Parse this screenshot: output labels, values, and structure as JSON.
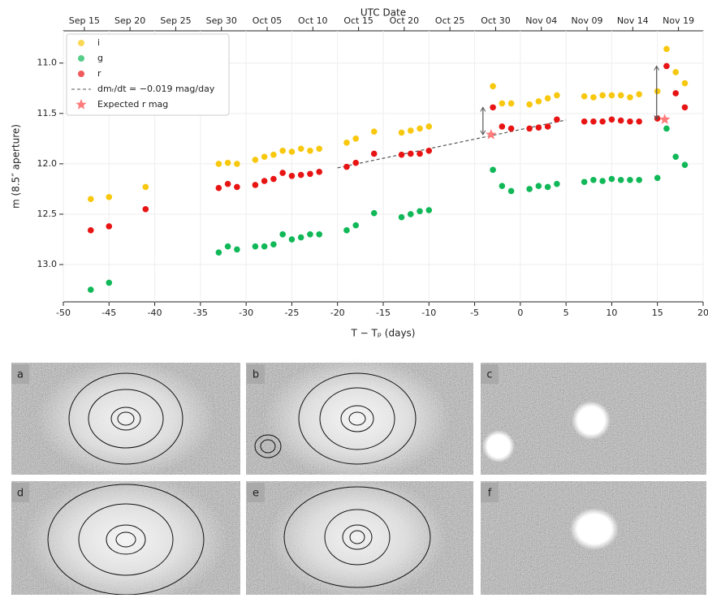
{
  "chart_data": {
    "type": "scatter",
    "top_axis_label": "UTC Date",
    "x_label": "T − Tₚ (days)",
    "y_label": "m (8.5″ aperture)",
    "xlim": [
      -50,
      20
    ],
    "xticks": [
      -50,
      -45,
      -40,
      -35,
      -30,
      -25,
      -20,
      -15,
      -10,
      -5,
      0,
      5,
      10,
      15,
      20
    ],
    "ylim": [
      13.37,
      10.68
    ],
    "yticks": [
      {
        "value": 11,
        "label": "11.0"
      },
      11.5,
      {
        "value": 12,
        "label": "12.0"
      },
      12.5,
      {
        "value": 13,
        "label": "13.0"
      }
    ],
    "x2ticks": [
      {
        "value": -47.7,
        "label": "Sep 15"
      },
      {
        "value": -42.7,
        "label": "Sep 20"
      },
      {
        "value": -37.7,
        "label": "Sep 25"
      },
      {
        "value": -32.7,
        "label": "Sep 30"
      },
      {
        "value": -27.7,
        "label": "Oct 05"
      },
      {
        "value": -22.7,
        "label": "Oct 10"
      },
      {
        "value": -17.7,
        "label": "Oct 15"
      },
      {
        "value": -12.7,
        "label": "Oct 20"
      },
      {
        "value": -7.7,
        "label": "Oct 25"
      },
      {
        "value": -2.7,
        "label": "Oct 30"
      },
      {
        "value": 2.3,
        "label": "Nov 04"
      },
      {
        "value": 7.3,
        "label": "Nov 09"
      },
      {
        "value": 12.3,
        "label": "Nov 14"
      },
      {
        "value": 17.3,
        "label": "Nov 19"
      }
    ],
    "grid": true,
    "legend": "upper left",
    "series": [
      {
        "name": "i",
        "color": "#f8c80e",
        "x": [
          -47,
          -45,
          -41,
          -33,
          -32,
          -31,
          -29,
          -28,
          -27,
          -26,
          -25,
          -24,
          -23,
          -22,
          -19,
          -18,
          -16,
          -13,
          -12,
          -11,
          -10,
          -3,
          -2,
          -1,
          1,
          2,
          3,
          4,
          7,
          8,
          9,
          10,
          11,
          12,
          13,
          15,
          16,
          17,
          18
        ],
        "values": [
          12.35,
          12.33,
          12.23,
          12.0,
          11.99,
          12.0,
          11.96,
          11.93,
          11.91,
          11.87,
          11.88,
          11.85,
          11.87,
          11.85,
          11.79,
          11.75,
          11.68,
          11.69,
          11.67,
          11.65,
          11.63,
          11.23,
          11.4,
          11.4,
          11.41,
          11.38,
          11.35,
          11.32,
          11.33,
          11.34,
          11.32,
          11.32,
          11.32,
          11.34,
          11.31,
          11.28,
          10.86,
          11.09,
          11.2
        ]
      },
      {
        "name": "g",
        "color": "#10b858",
        "x": [
          -47,
          -45,
          -33,
          -32,
          -31,
          -29,
          -28,
          -27,
          -26,
          -25,
          -24,
          -23,
          -22,
          -19,
          -18,
          -16,
          -13,
          -12,
          -11,
          -10,
          -3,
          -2,
          -1,
          1,
          2,
          3,
          4,
          7,
          8,
          9,
          10,
          11,
          12,
          13,
          15,
          16,
          17,
          18
        ],
        "values": [
          13.25,
          13.18,
          12.88,
          12.82,
          12.85,
          12.82,
          12.82,
          12.8,
          12.7,
          12.75,
          12.73,
          12.7,
          12.7,
          12.66,
          12.61,
          12.49,
          12.53,
          12.5,
          12.47,
          12.46,
          12.06,
          12.22,
          12.27,
          12.25,
          12.22,
          12.23,
          12.2,
          12.18,
          12.16,
          12.17,
          12.15,
          12.16,
          12.16,
          12.16,
          12.14,
          11.65,
          11.93,
          12.01
        ]
      },
      {
        "name": "r",
        "color": "#e81414",
        "x": [
          -47,
          -45,
          -41,
          -33,
          -32,
          -31,
          -29,
          -28,
          -27,
          -26,
          -25,
          -24,
          -23,
          -22,
          -19,
          -18,
          -16,
          -13,
          -12,
          -11,
          -10,
          -3,
          -2,
          -1,
          1,
          2,
          3,
          4,
          7,
          8,
          9,
          10,
          11,
          12,
          13,
          15,
          16,
          17,
          18
        ],
        "values": [
          12.66,
          12.62,
          12.45,
          12.24,
          12.2,
          12.23,
          12.21,
          12.17,
          12.15,
          12.09,
          12.12,
          12.11,
          12.1,
          12.08,
          12.03,
          11.99,
          11.9,
          11.91,
          11.9,
          11.9,
          11.87,
          11.44,
          11.63,
          11.65,
          11.65,
          11.64,
          11.63,
          11.56,
          11.58,
          11.58,
          11.58,
          11.56,
          11.57,
          11.58,
          11.58,
          11.55,
          11.03,
          11.3,
          11.44
        ]
      }
    ],
    "trend": {
      "name": "dmᵣ/dt = −0.019 mag/day",
      "color": "#555555",
      "x": [
        -20,
        5
      ],
      "values": [
        12.04,
        11.565
      ]
    },
    "expected": {
      "name": "Expected r mag",
      "color": "#ff7a7a",
      "x": [
        -3.2,
        15.8
      ],
      "values": [
        11.71,
        11.56
      ]
    }
  },
  "panels": {
    "labels": [
      "a",
      "b",
      "c",
      "d",
      "e",
      "f"
    ]
  }
}
